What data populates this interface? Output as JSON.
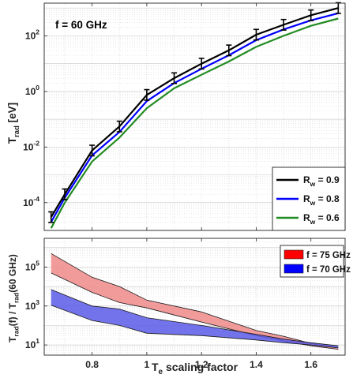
{
  "colors": {
    "rw09": "#000000",
    "rw08": "#0000ff",
    "rw06": "#228b22",
    "band75_fill": "#f08a8a",
    "band75_edge": "#1a1a1a",
    "band70_fill": "#5a5ae8",
    "band70_edge": "#1a1a1a",
    "grid": "#d0d0d0",
    "axis": "#222222"
  },
  "chart_data": [
    {
      "type": "line",
      "annotation": "f = 60 GHz",
      "ylabel": {
        "main": "T",
        "sub": "rad",
        "unit": " [eV]"
      },
      "yscale": "log",
      "ylim": [
        1e-05,
        1500
      ],
      "xlim": [
        0.625,
        1.725
      ],
      "yticks": [
        {
          "value": 0.0001,
          "base": "10",
          "exp": "-4"
        },
        {
          "value": 0.01,
          "base": "10",
          "exp": "-2"
        },
        {
          "value": 1,
          "base": "10",
          "exp": "0"
        },
        {
          "value": 100,
          "base": "10",
          "exp": "2"
        }
      ],
      "grid": true,
      "legend_position": "lower-right",
      "x": [
        0.65,
        0.7,
        0.8,
        0.9,
        1.0,
        1.1,
        1.2,
        1.3,
        1.4,
        1.5,
        1.6,
        1.7
      ],
      "series": [
        {
          "name": {
            "main": "R",
            "sub": "w",
            "value": " = 0.9"
          },
          "color_key": "rw09",
          "errorbars": true,
          "values": [
            3e-05,
            0.0002,
            0.0075,
            0.055,
            0.75,
            3.0,
            10,
            30,
            110,
            250,
            550,
            1000
          ]
        },
        {
          "name": {
            "main": "R",
            "sub": "w",
            "value": " = 0.8"
          },
          "color_key": "rw08",
          "errorbars": false,
          "values": [
            2e-05,
            0.00015,
            0.005,
            0.035,
            0.45,
            2.0,
            6.5,
            20,
            70,
            170,
            360,
            650
          ]
        },
        {
          "name": {
            "main": "R",
            "sub": "w",
            "value": " = 0.6"
          },
          "color_key": "rw06",
          "errorbars": false,
          "values": [
            1.2e-05,
            0.0001,
            0.003,
            0.022,
            0.25,
            1.3,
            4.0,
            12,
            40,
            100,
            230,
            420
          ]
        }
      ]
    },
    {
      "type": "area",
      "ylabel": {
        "p1": "T",
        "s1": "rad",
        "p2": "(f) / T",
        "s2": "rad",
        "p3": "(60 GHz)"
      },
      "xlabel": {
        "main": "T",
        "sub": "e",
        "rest": " scaling factor"
      },
      "yscale": "log",
      "ylim": [
        3,
        3000000
      ],
      "xlim": [
        0.625,
        1.725
      ],
      "xticks": [
        "0.8",
        "1",
        "1.2",
        "1.4",
        "1.6"
      ],
      "xtick_values": [
        0.8,
        1.0,
        1.2,
        1.4,
        1.6
      ],
      "yticks": [
        {
          "value": 10,
          "base": "10",
          "exp": "1"
        },
        {
          "value": 1000,
          "base": "10",
          "exp": "3"
        },
        {
          "value": 100000,
          "base": "10",
          "exp": "5"
        }
      ],
      "grid": true,
      "legend_position": "top-right",
      "x": [
        0.65,
        0.8,
        0.9,
        1.0,
        1.2,
        1.4,
        1.5,
        1.6,
        1.7
      ],
      "series": [
        {
          "name": "f = 75 GHz",
          "color_key": "band75",
          "upper": [
            500000,
            30000,
            10000,
            2000,
            500,
            55,
            28,
            12,
            7
          ],
          "lower": [
            50000,
            5000,
            1500,
            800,
            150,
            30,
            16,
            9,
            6
          ]
        },
        {
          "name": "f = 70 GHz",
          "color_key": "band70",
          "upper": [
            7000,
            1000,
            700,
            250,
            100,
            35,
            20,
            13,
            9
          ],
          "lower": [
            1100,
            180,
            100,
            40,
            30,
            18,
            13,
            10,
            7
          ]
        }
      ]
    }
  ]
}
